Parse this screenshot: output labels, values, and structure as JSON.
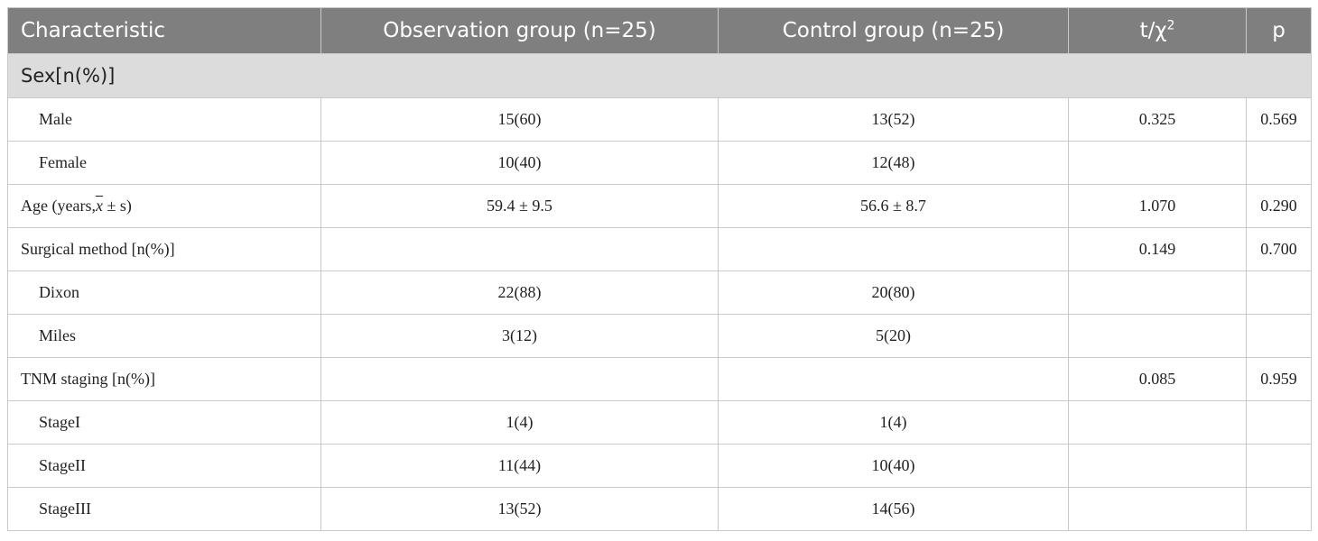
{
  "header": {
    "characteristic": "Characteristic",
    "observation": "Observation group (n=25)",
    "control": "Control group (n=25)",
    "stat": "t/χ",
    "stat_sup": "2",
    "p": "p"
  },
  "section_sex": "Sex[n(%)]",
  "rows": {
    "male": {
      "label": "Male",
      "obs": "15(60)",
      "ctl": "13(52)",
      "stat": "0.325",
      "p": "0.569"
    },
    "female": {
      "label": "Female",
      "obs": "10(40)",
      "ctl": "12(48)",
      "stat": "",
      "p": ""
    },
    "age": {
      "label_pre": "Age (years,",
      "label_xbar": "x",
      "label_post": " ± s)",
      "obs": "59.4 ± 9.5",
      "ctl": "56.6 ± 8.7",
      "stat": "1.070",
      "p": "0.290"
    },
    "surgical": {
      "label": "Surgical method [n(%)]",
      "obs": "",
      "ctl": "",
      "stat": "0.149",
      "p": "0.700"
    },
    "dixon": {
      "label": "Dixon",
      "obs": "22(88)",
      "ctl": "20(80)",
      "stat": "",
      "p": ""
    },
    "miles": {
      "label": "Miles",
      "obs": "3(12)",
      "ctl": "5(20)",
      "stat": "",
      "p": ""
    },
    "tnm": {
      "label": "TNM staging [n(%)]",
      "obs": "",
      "ctl": "",
      "stat": "0.085",
      "p": "0.959"
    },
    "stage1": {
      "label": "StageI",
      "obs": "1(4)",
      "ctl": "1(4)",
      "stat": "",
      "p": ""
    },
    "stage2": {
      "label": "StageII",
      "obs": "11(44)",
      "ctl": "10(40)",
      "stat": "",
      "p": ""
    },
    "stage3": {
      "label": "StageIII",
      "obs": "13(52)",
      "ctl": "14(56)",
      "stat": "",
      "p": ""
    }
  }
}
